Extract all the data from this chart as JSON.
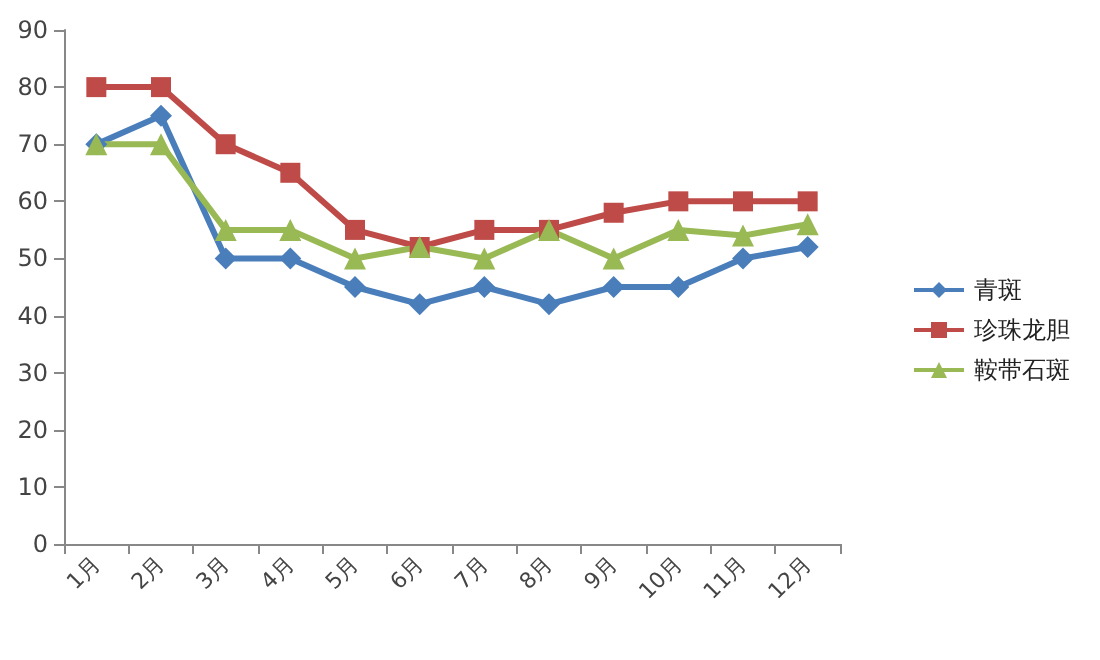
{
  "chart_data": {
    "type": "line",
    "categories": [
      "1月",
      "2月",
      "3月",
      "4月",
      "5月",
      "6月",
      "7月",
      "8月",
      "9月",
      "10月",
      "11月",
      "12月"
    ],
    "series": [
      {
        "name": "青斑",
        "color": "#4a7ebb",
        "marker": "diamond",
        "values": [
          70,
          75,
          50,
          50,
          45,
          42,
          45,
          42,
          45,
          45,
          50,
          52
        ]
      },
      {
        "name": "珍珠龙胆",
        "color": "#be4b48",
        "marker": "square",
        "values": [
          80,
          80,
          70,
          65,
          55,
          52,
          55,
          55,
          58,
          60,
          60,
          60
        ]
      },
      {
        "name": "鞍带石斑",
        "color": "#98b954",
        "marker": "triangle",
        "values": [
          70,
          70,
          55,
          55,
          50,
          52,
          50,
          55,
          50,
          55,
          54,
          56
        ]
      }
    ],
    "ylim": [
      0,
      90
    ],
    "yticks": [
      0,
      10,
      20,
      30,
      40,
      50,
      60,
      70,
      80,
      90
    ],
    "grid": false,
    "legend": "right",
    "line_style": "solid"
  }
}
